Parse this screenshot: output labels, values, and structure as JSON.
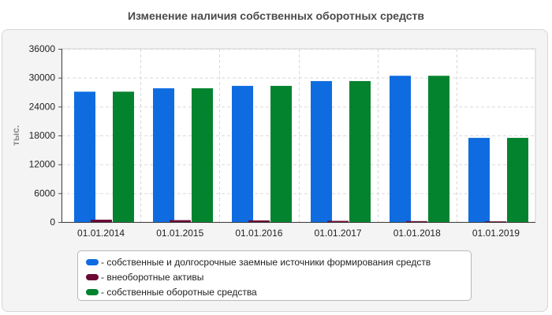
{
  "title": "Изменение наличия собственных оборотных средств",
  "colors": {
    "blue": "#0f6ce0",
    "maroon": "#6b0a34",
    "green": "#04832f",
    "panel_bg": "#f4f4f4",
    "plot_bg": "#ffffff"
  },
  "chart_data": {
    "type": "bar",
    "title": "Изменение наличия собственных оборотных средств",
    "ylabel": "тыс.",
    "xlabel": "",
    "categories": [
      "01.01.2014",
      "01.01.2015",
      "01.01.2016",
      "01.01.2017",
      "01.01.2018",
      "01.01.2019"
    ],
    "series": [
      {
        "name": "- собственные и долгосрочные заемные источники формирования средств",
        "color": "#0f6ce0",
        "values": [
          27100,
          27800,
          28300,
          29300,
          30400,
          17500
        ]
      },
      {
        "name": "- внеоборотные активы",
        "color": "#6b0a34",
        "values": [
          500,
          400,
          350,
          250,
          200,
          150
        ]
      },
      {
        "name": "- собственные оборотные средства",
        "color": "#04832f",
        "values": [
          27100,
          27800,
          28300,
          29300,
          30400,
          17500
        ]
      }
    ],
    "ylim": [
      0,
      36000
    ],
    "yticks": [
      0,
      6000,
      12000,
      18000,
      24000,
      30000,
      36000
    ],
    "grid": true,
    "legend_position": "bottom"
  }
}
